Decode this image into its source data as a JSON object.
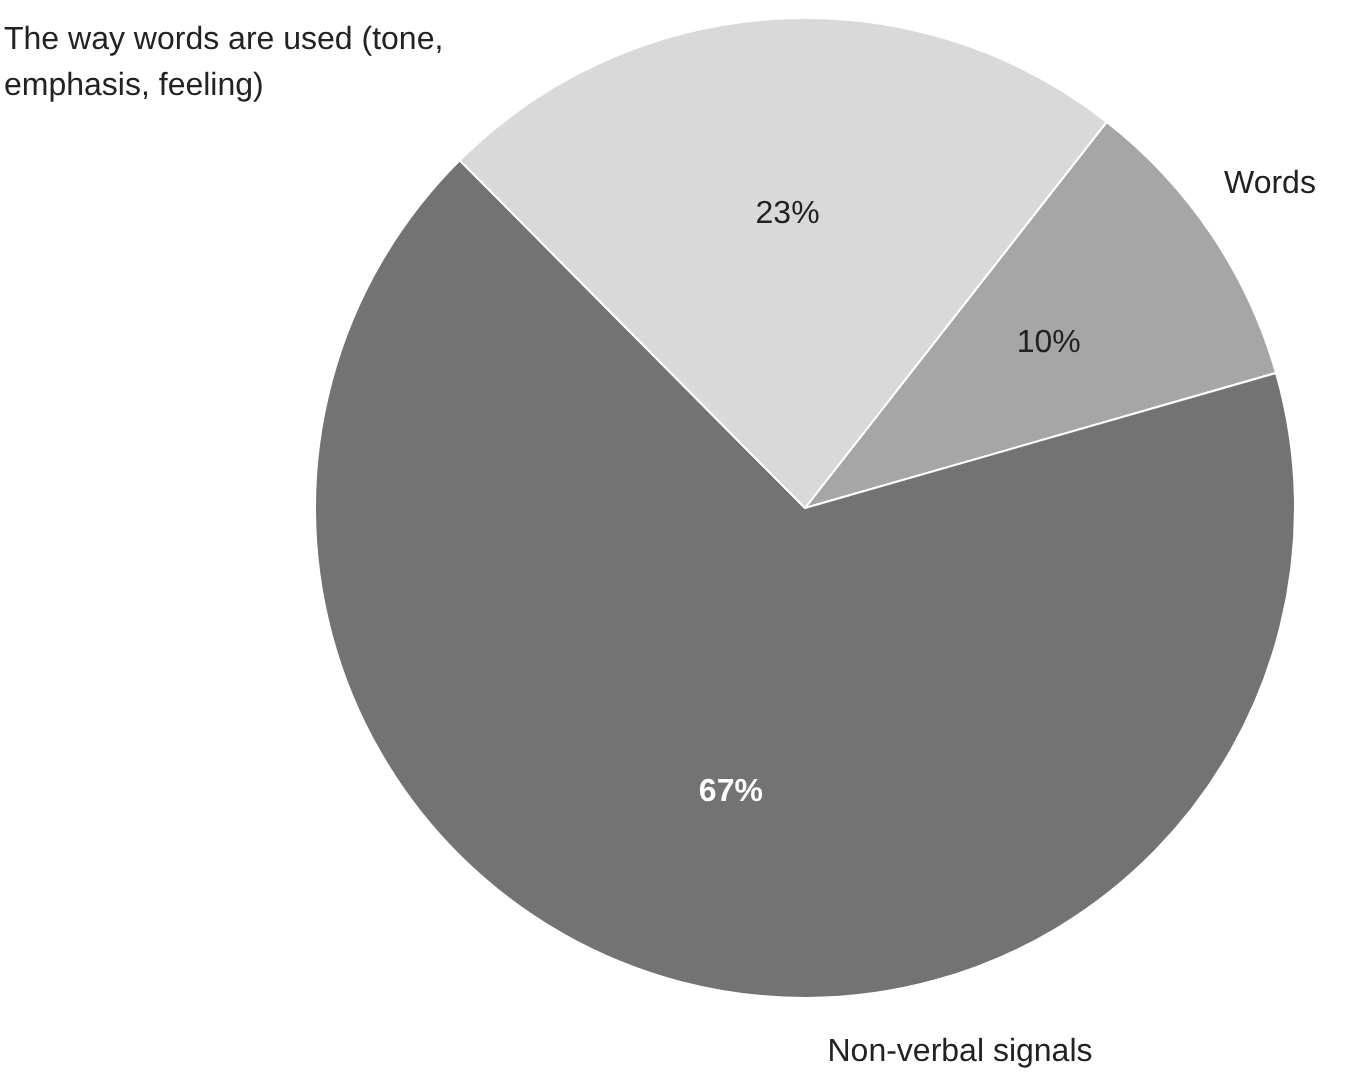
{
  "chart_data": {
    "type": "pie",
    "categories": [
      "Words",
      "Non-verbal signals",
      "The way words are used (tone, emphasis, feeling)"
    ],
    "values": [
      10,
      67,
      23
    ],
    "colors": [
      "#a6a6a6",
      "#737373",
      "#d9d9d9"
    ],
    "value_labels": [
      "10%",
      "67%",
      "23%"
    ],
    "legend": false
  }
}
